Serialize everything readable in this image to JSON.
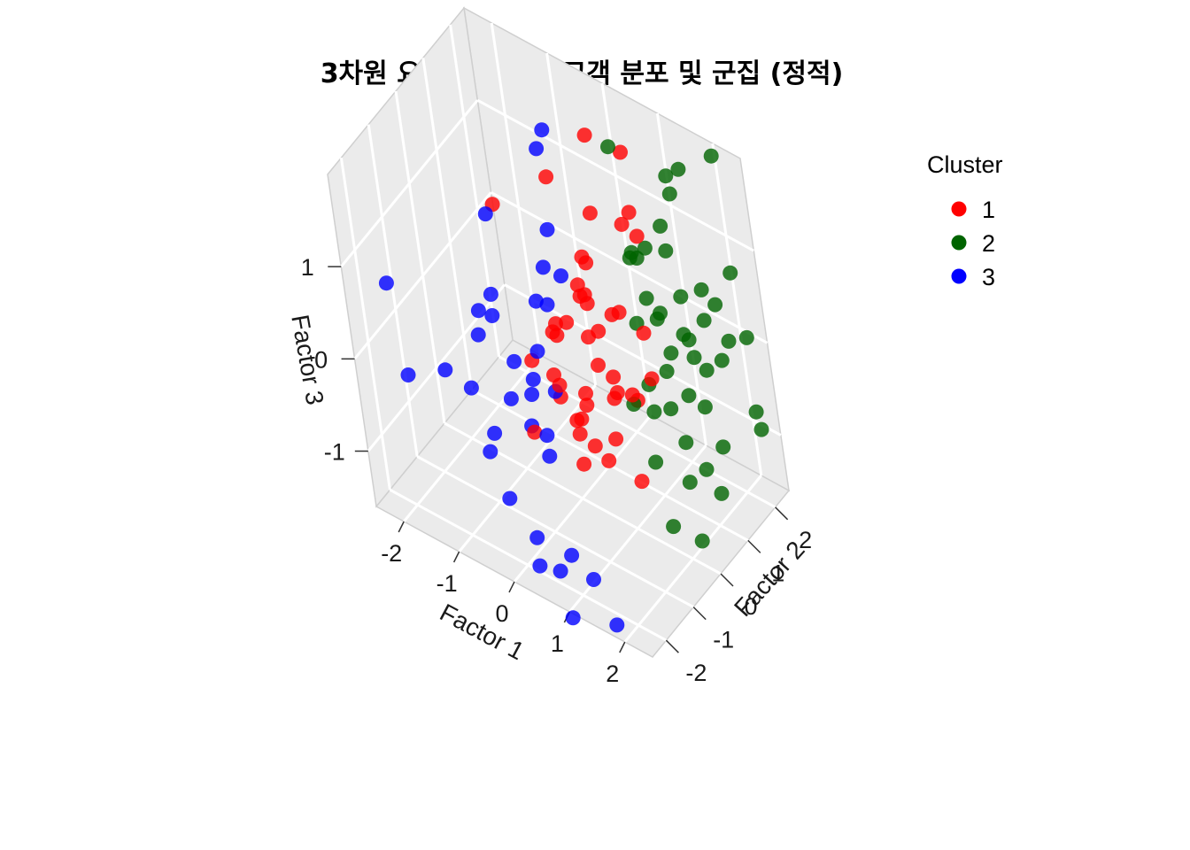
{
  "chart_data": {
    "type": "scatter",
    "title": "3차원 요인점수 기반 고객 분포 및 군집 (정적)",
    "xlabel": "Factor 1",
    "ylabel": "Factor 2",
    "zlabel": "Factor 3",
    "x_ticks": [
      "-2",
      "-1",
      "0",
      "1",
      "2"
    ],
    "y_ticks": [
      "-2",
      "-1",
      "0",
      "1",
      "2"
    ],
    "z_ticks": [
      "-1",
      "0",
      "1"
    ],
    "xlim": [
      -2.5,
      2.5
    ],
    "ylim": [
      -2.5,
      2.5
    ],
    "zlim": [
      -1.6,
      2.0
    ],
    "grid": true,
    "projection": "3d",
    "legend": {
      "title": "Cluster",
      "position": "right",
      "entries": [
        {
          "label": "1",
          "color": "#ff0000"
        },
        {
          "label": "2",
          "color": "#006400"
        },
        {
          "label": "3",
          "color": "#0000ff"
        }
      ]
    },
    "series": [
      {
        "name": "1",
        "color": "#ff0000",
        "points": [
          [
            0.2,
            1.4,
            1.9
          ],
          [
            0.6,
            1.8,
            1.7
          ],
          [
            -0.3,
            0.8,
            1.5
          ],
          [
            0.4,
            0.9,
            1.3
          ],
          [
            -0.8,
            -0.2,
            1.4
          ],
          [
            1.0,
            1.3,
            1.1
          ],
          [
            0.8,
            1.2,
            1.2
          ],
          [
            0.3,
            0.6,
            0.9
          ],
          [
            0.5,
            0.2,
            0.7
          ],
          [
            0.2,
            0.5,
            0.6
          ],
          [
            0.4,
            0.4,
            0.5
          ],
          [
            0.6,
            0.3,
            0.3
          ],
          [
            0.0,
            0.3,
            0.2
          ],
          [
            -0.1,
            0.1,
            0.1
          ],
          [
            0.2,
            0.6,
            0.0
          ],
          [
            0.5,
            0.3,
            -0.1
          ],
          [
            0.7,
            0.4,
            -0.2
          ],
          [
            0.1,
            -0.2,
            0.4
          ],
          [
            -0.3,
            0.3,
            0.0
          ],
          [
            0.3,
            0.1,
            -0.4
          ],
          [
            0.6,
            0.5,
            -0.5
          ],
          [
            0.8,
            0.3,
            -0.3
          ],
          [
            0.0,
            -0.2,
            -0.3
          ],
          [
            -0.2,
            0.1,
            -0.6
          ],
          [
            0.2,
            -0.1,
            -0.8
          ],
          [
            0.4,
            0.0,
            -0.9
          ],
          [
            0.7,
            0.2,
            -0.8
          ],
          [
            -0.4,
            0.3,
            -0.5
          ],
          [
            0.1,
            0.4,
            -0.7
          ],
          [
            0.9,
            0.6,
            -0.4
          ],
          [
            1.2,
            0.8,
            -0.2
          ],
          [
            1.0,
            0.4,
            0.6
          ],
          [
            0.6,
            0.8,
            0.3
          ],
          [
            -0.6,
            0.0,
            -0.3
          ],
          [
            -0.2,
            0.5,
            -1.0
          ],
          [
            0.5,
            0.2,
            -1.1
          ],
          [
            0.9,
            0.5,
            -1.3
          ],
          [
            -0.5,
            -0.4,
            -0.9
          ],
          [
            0.3,
            0.7,
            0.8
          ],
          [
            1.1,
            1.0,
            1.5
          ],
          [
            -0.1,
            1.0,
            0.2
          ],
          [
            0.8,
            0.9,
            -0.6
          ],
          [
            0.0,
            0.2,
            -1.3
          ],
          [
            1.3,
            0.6,
            0.4
          ],
          [
            0.4,
            -0.3,
            -0.5
          ]
        ]
      },
      {
        "name": "2",
        "color": "#006400",
        "points": [
          [
            1.3,
            2.0,
            1.6
          ],
          [
            1.5,
            2.1,
            1.7
          ],
          [
            2.0,
            2.4,
            1.9
          ],
          [
            1.2,
            2.2,
            1.3
          ],
          [
            0.5,
            1.6,
            1.8
          ],
          [
            1.4,
            1.5,
            1.0
          ],
          [
            1.0,
            1.2,
            0.9
          ],
          [
            1.8,
            1.8,
            0.6
          ],
          [
            1.5,
            1.6,
            0.5
          ],
          [
            1.2,
            1.0,
            0.6
          ],
          [
            1.3,
            1.2,
            0.4
          ],
          [
            1.0,
            0.9,
            0.3
          ],
          [
            1.1,
            1.4,
            0.2
          ],
          [
            1.6,
            1.5,
            0.1
          ],
          [
            1.4,
            1.2,
            0.0
          ],
          [
            1.7,
            1.9,
            0.2
          ],
          [
            2.0,
            2.1,
            0.0
          ],
          [
            1.8,
            1.6,
            -0.2
          ],
          [
            1.2,
            1.3,
            -0.3
          ],
          [
            1.5,
            1.4,
            -0.5
          ],
          [
            1.0,
            1.0,
            -0.4
          ],
          [
            1.3,
            1.1,
            -0.6
          ],
          [
            0.9,
            1.2,
            -0.8
          ],
          [
            1.6,
            1.7,
            -0.7
          ],
          [
            1.9,
            1.6,
            -1.0
          ],
          [
            1.7,
            1.3,
            -1.2
          ],
          [
            2.2,
            2.4,
            -1.0
          ],
          [
            1.4,
            1.2,
            -1.4
          ],
          [
            1.8,
            1.5,
            -1.5
          ],
          [
            1.2,
            0.8,
            -1.8
          ],
          [
            1.6,
            1.0,
            -1.9
          ],
          [
            2.0,
            1.8,
            -0.1
          ],
          [
            2.3,
            2.2,
            0.1
          ],
          [
            1.1,
            0.9,
            1.1
          ],
          [
            0.8,
            1.3,
            0.8
          ],
          [
            1.9,
            2.0,
            0.4
          ],
          [
            1.5,
            1.1,
            -0.9
          ],
          [
            1.0,
            1.5,
            0.9
          ],
          [
            1.4,
            1.9,
            -0.3
          ],
          [
            0.9,
            0.6,
            -0.5
          ],
          [
            2.1,
            2.3,
            0.7
          ],
          [
            1.3,
            1.6,
            1.2
          ],
          [
            1.7,
            1.2,
            0.3
          ],
          [
            1.1,
            0.7,
            -1.1
          ],
          [
            2.4,
            2.0,
            -0.6
          ]
        ]
      },
      {
        "name": "3",
        "color": "#0000ff",
        "points": [
          [
            -0.5,
            1.2,
            1.8
          ],
          [
            -0.6,
            1.1,
            1.6
          ],
          [
            -0.9,
            -0.3,
            1.3
          ],
          [
            -0.3,
            0.6,
            1.0
          ],
          [
            -0.3,
            0.3,
            0.7
          ],
          [
            -2.1,
            -1.8,
            0.7
          ],
          [
            -0.1,
            0.5,
            0.6
          ],
          [
            -0.6,
            0.4,
            0.2
          ],
          [
            -1.0,
            -0.4,
            0.2
          ],
          [
            -1.2,
            -0.6,
            0.0
          ],
          [
            -0.4,
            -0.1,
            -0.1
          ],
          [
            -0.7,
            -0.4,
            -0.2
          ],
          [
            -0.5,
            -0.2,
            -0.4
          ],
          [
            -1.7,
            -1.0,
            -0.4
          ],
          [
            -1.3,
            -0.9,
            -0.5
          ],
          [
            -2.0,
            -1.7,
            -0.3
          ],
          [
            -0.8,
            -0.5,
            -0.6
          ],
          [
            -0.6,
            -0.3,
            -0.9
          ],
          [
            -1.1,
            -0.7,
            -1.0
          ],
          [
            -0.4,
            -0.2,
            -1.2
          ],
          [
            -0.2,
            -0.5,
            -0.8
          ],
          [
            -1.3,
            -0.6,
            -1.3
          ],
          [
            -0.8,
            -1.0,
            -1.5
          ],
          [
            -0.5,
            -0.8,
            -1.9
          ],
          [
            -0.4,
            -1.0,
            -2.1
          ],
          [
            -0.2,
            -0.7,
            -2.2
          ],
          [
            0.0,
            -0.6,
            -2.0
          ],
          [
            0.3,
            -0.5,
            -2.2
          ],
          [
            0.1,
            -1.0,
            -2.5
          ],
          [
            0.5,
            -0.3,
            -2.7
          ],
          [
            -0.9,
            -0.5,
            0.5
          ],
          [
            -0.2,
            0.1,
            0.4
          ],
          [
            -0.7,
            0.0,
            -0.7
          ],
          [
            -1.0,
            -0.8,
            0.4
          ],
          [
            -0.1,
            -0.2,
            -0.4
          ]
        ]
      }
    ]
  }
}
